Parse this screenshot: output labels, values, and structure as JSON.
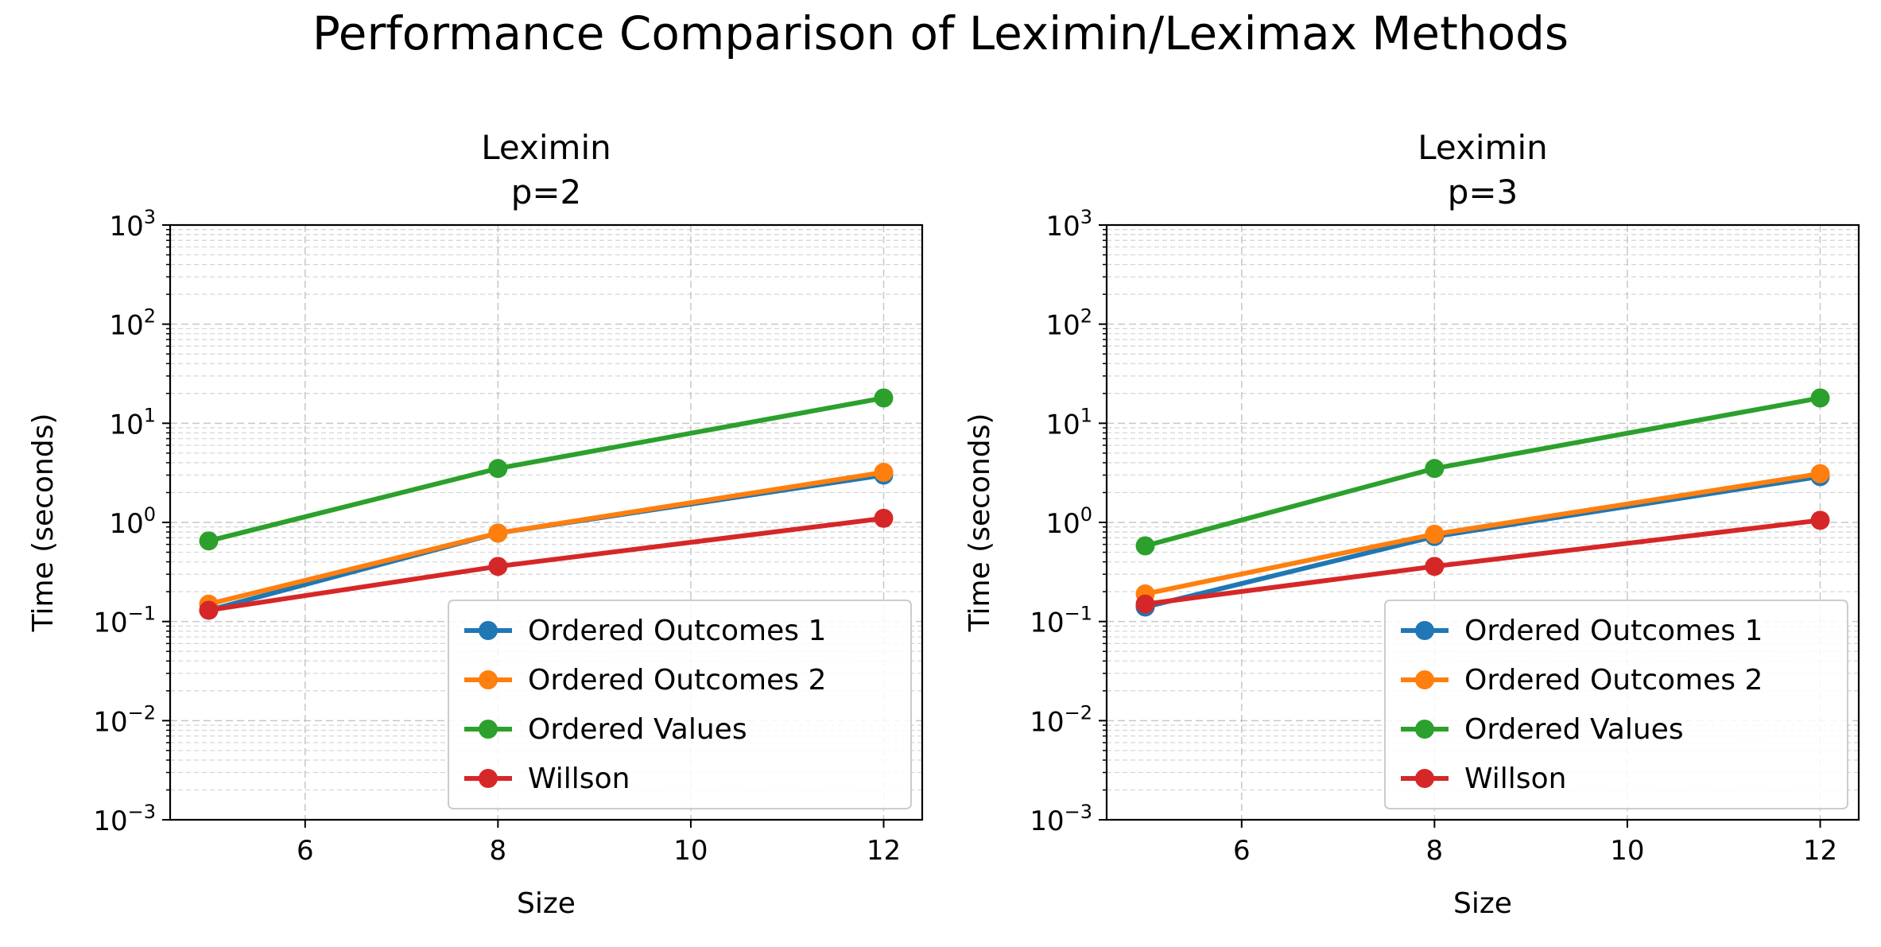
{
  "figure": {
    "title": "Performance Comparison of Leximin/Leximax Methods"
  },
  "colors": {
    "Ordered Outcomes 1": "#1f77b4",
    "Ordered Outcomes 2": "#ff7f0e",
    "Ordered Values": "#2ca02c",
    "Willson": "#d62728",
    "grid": "#b0b0b0",
    "axis": "#000000",
    "legend_border": "#cccccc"
  },
  "chart_data": [
    {
      "type": "line",
      "title": "Leximin\np=2",
      "xlabel": "Size",
      "ylabel": "Time (seconds)",
      "x": [
        5,
        8,
        12
      ],
      "xlim": [
        4.6,
        12.4
      ],
      "xticks": [
        6,
        8,
        10,
        12
      ],
      "ylim": [
        0.001,
        1000
      ],
      "yscale": "log",
      "yticks": [
        {
          "base": "10",
          "exp": "−3",
          "value": 0.001
        },
        {
          "base": "10",
          "exp": "−2",
          "value": 0.01
        },
        {
          "base": "10",
          "exp": "−1",
          "value": 0.1
        },
        {
          "base": "10",
          "exp": "0",
          "value": 1
        },
        {
          "base": "10",
          "exp": "1",
          "value": 10
        },
        {
          "base": "10",
          "exp": "2",
          "value": 100
        },
        {
          "base": "10",
          "exp": "3",
          "value": 1000
        }
      ],
      "grid": true,
      "legend_position": "lower-right",
      "series": [
        {
          "name": "Ordered Outcomes 1",
          "values": [
            0.13,
            0.78,
            3.0
          ]
        },
        {
          "name": "Ordered Outcomes 2",
          "values": [
            0.15,
            0.78,
            3.2
          ]
        },
        {
          "name": "Ordered Values",
          "values": [
            0.65,
            3.5,
            18
          ]
        },
        {
          "name": "Willson",
          "values": [
            0.13,
            0.36,
            1.1
          ]
        }
      ]
    },
    {
      "type": "line",
      "title": "Leximin\np=3",
      "xlabel": "Size",
      "ylabel": "Time (seconds)",
      "x": [
        5,
        8,
        12
      ],
      "xlim": [
        4.6,
        12.4
      ],
      "xticks": [
        6,
        8,
        10,
        12
      ],
      "ylim": [
        0.001,
        1000
      ],
      "yscale": "log",
      "yticks": [
        {
          "base": "10",
          "exp": "−3",
          "value": 0.001
        },
        {
          "base": "10",
          "exp": "−2",
          "value": 0.01
        },
        {
          "base": "10",
          "exp": "−1",
          "value": 0.1
        },
        {
          "base": "10",
          "exp": "0",
          "value": 1
        },
        {
          "base": "10",
          "exp": "1",
          "value": 10
        },
        {
          "base": "10",
          "exp": "2",
          "value": 100
        },
        {
          "base": "10",
          "exp": "3",
          "value": 1000
        }
      ],
      "grid": true,
      "legend_position": "lower-right",
      "series": [
        {
          "name": "Ordered Outcomes 1",
          "values": [
            0.14,
            0.72,
            2.9
          ]
        },
        {
          "name": "Ordered Outcomes 2",
          "values": [
            0.19,
            0.76,
            3.1
          ]
        },
        {
          "name": "Ordered Values",
          "values": [
            0.58,
            3.5,
            18
          ]
        },
        {
          "name": "Willson",
          "values": [
            0.15,
            0.36,
            1.05
          ]
        }
      ]
    }
  ]
}
